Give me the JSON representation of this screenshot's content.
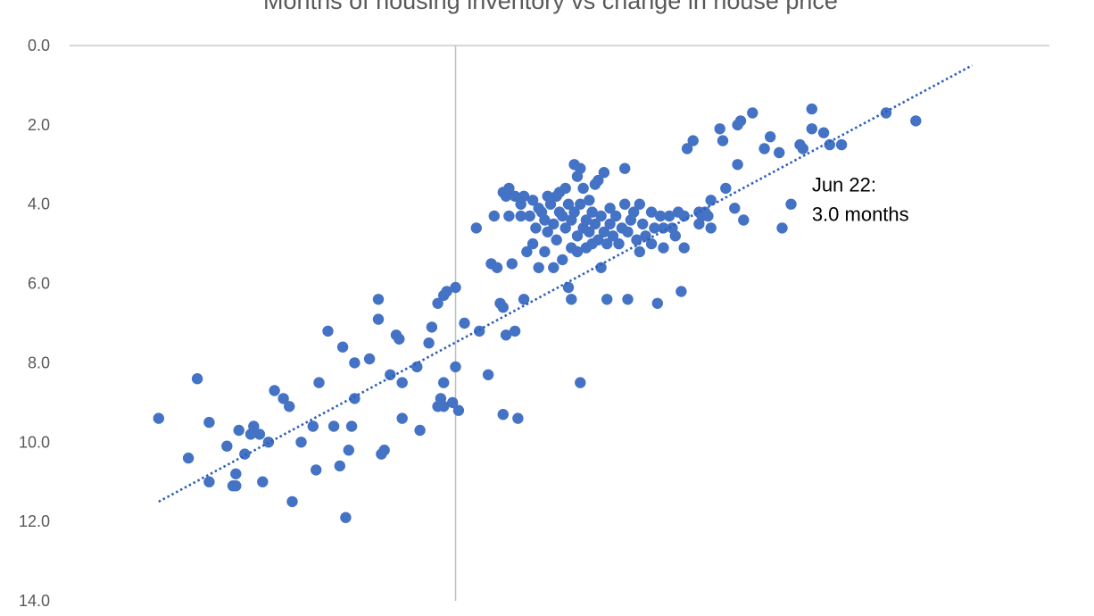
{
  "chart_data": {
    "type": "scatter",
    "title": "Months of housing inventory vs change in house price",
    "xlabel": "",
    "ylabel": "",
    "ylim": [
      0,
      14
    ],
    "y_reversed": true,
    "xlim": [
      -0.13,
      0.2
    ],
    "x_axis_crossing": 0,
    "y_ticks": [
      "0.0",
      "2.0",
      "4.0",
      "6.0",
      "8.0",
      "10.0",
      "12.0",
      "14.0"
    ],
    "gridlines": true,
    "trendline": {
      "style": "dotted",
      "x": [
        -0.1,
        0.174
      ],
      "y": [
        11.5,
        0.5
      ]
    },
    "annotation": {
      "line1": "Jun 22:",
      "line2": "3.0 months",
      "x": 0.12,
      "y": 4.0
    },
    "colors": {
      "marker": "#4472c4",
      "trend": "#2e5eb8",
      "axis": "#bfbfbf",
      "text": "#595959"
    },
    "series": [
      {
        "name": "",
        "points": [
          [
            -0.1,
            9.4
          ],
          [
            -0.083,
            9.5
          ],
          [
            -0.083,
            11.0
          ],
          [
            -0.09,
            10.4
          ],
          [
            -0.087,
            8.4
          ],
          [
            -0.077,
            10.1
          ],
          [
            -0.075,
            11.1
          ],
          [
            -0.074,
            10.8
          ],
          [
            -0.074,
            11.1
          ],
          [
            -0.073,
            9.7
          ],
          [
            -0.071,
            10.3
          ],
          [
            -0.069,
            9.8
          ],
          [
            -0.068,
            9.6
          ],
          [
            -0.066,
            9.8
          ],
          [
            -0.065,
            11.0
          ],
          [
            -0.063,
            10.0
          ],
          [
            -0.061,
            8.7
          ],
          [
            -0.058,
            8.9
          ],
          [
            -0.056,
            9.1
          ],
          [
            -0.055,
            11.5
          ],
          [
            -0.052,
            10.0
          ],
          [
            -0.048,
            9.6
          ],
          [
            -0.047,
            10.7
          ],
          [
            -0.046,
            8.5
          ],
          [
            -0.043,
            7.2
          ],
          [
            -0.041,
            9.6
          ],
          [
            -0.039,
            10.6
          ],
          [
            -0.038,
            7.6
          ],
          [
            -0.037,
            11.9
          ],
          [
            -0.036,
            10.2
          ],
          [
            -0.034,
            8.0
          ],
          [
            -0.035,
            9.6
          ],
          [
            -0.034,
            8.9
          ],
          [
            -0.029,
            7.9
          ],
          [
            -0.026,
            6.4
          ],
          [
            -0.026,
            6.9
          ],
          [
            -0.025,
            10.3
          ],
          [
            -0.024,
            10.2
          ],
          [
            -0.022,
            8.3
          ],
          [
            -0.02,
            7.3
          ],
          [
            -0.019,
            7.4
          ],
          [
            -0.018,
            8.5
          ],
          [
            -0.018,
            9.4
          ],
          [
            -0.012,
            9.7
          ],
          [
            -0.013,
            8.1
          ],
          [
            -0.009,
            7.5
          ],
          [
            -0.008,
            7.1
          ],
          [
            -0.006,
            9.1
          ],
          [
            -0.005,
            8.9
          ],
          [
            -0.004,
            8.5
          ],
          [
            -0.004,
            9.1
          ],
          [
            -0.001,
            9.0
          ],
          [
            -0.006,
            6.5
          ],
          [
            -0.004,
            6.3
          ],
          [
            -0.003,
            6.2
          ],
          [
            0.0,
            6.1
          ],
          [
            0.0,
            8.1
          ],
          [
            0.001,
            9.2
          ],
          [
            0.003,
            7.0
          ],
          [
            0.008,
            7.2
          ],
          [
            0.011,
            8.3
          ],
          [
            0.007,
            4.6
          ],
          [
            0.012,
            5.5
          ],
          [
            0.013,
            4.3
          ],
          [
            0.014,
            5.6
          ],
          [
            0.015,
            6.5
          ],
          [
            0.016,
            6.6
          ],
          [
            0.016,
            9.3
          ],
          [
            0.017,
            7.3
          ],
          [
            0.016,
            3.7
          ],
          [
            0.017,
            3.8
          ],
          [
            0.018,
            4.3
          ],
          [
            0.018,
            3.6
          ],
          [
            0.02,
            3.8
          ],
          [
            0.019,
            5.5
          ],
          [
            0.02,
            7.2
          ],
          [
            0.021,
            9.4
          ],
          [
            0.022,
            4.3
          ],
          [
            0.022,
            4.0
          ],
          [
            0.023,
            3.8
          ],
          [
            0.024,
            5.2
          ],
          [
            0.023,
            6.4
          ],
          [
            0.025,
            4.3
          ],
          [
            0.026,
            3.9
          ],
          [
            0.027,
            4.6
          ],
          [
            0.026,
            5.0
          ],
          [
            0.028,
            4.1
          ],
          [
            0.028,
            5.6
          ],
          [
            0.029,
            4.2
          ],
          [
            0.03,
            4.4
          ],
          [
            0.03,
            5.2
          ],
          [
            0.031,
            4.7
          ],
          [
            0.031,
            3.8
          ],
          [
            0.032,
            4.0
          ],
          [
            0.033,
            4.5
          ],
          [
            0.033,
            5.6
          ],
          [
            0.034,
            3.8
          ],
          [
            0.034,
            4.9
          ],
          [
            0.035,
            4.2
          ],
          [
            0.035,
            3.7
          ],
          [
            0.036,
            4.3
          ],
          [
            0.036,
            5.4
          ],
          [
            0.037,
            3.6
          ],
          [
            0.037,
            4.6
          ],
          [
            0.038,
            6.1
          ],
          [
            0.038,
            4.0
          ],
          [
            0.039,
            5.1
          ],
          [
            0.039,
            4.4
          ],
          [
            0.039,
            6.4
          ],
          [
            0.04,
            3.0
          ],
          [
            0.04,
            4.2
          ],
          [
            0.041,
            4.8
          ],
          [
            0.041,
            3.3
          ],
          [
            0.041,
            5.2
          ],
          [
            0.042,
            3.1
          ],
          [
            0.042,
            4.0
          ],
          [
            0.043,
            4.6
          ],
          [
            0.043,
            3.6
          ],
          [
            0.042,
            8.5
          ],
          [
            0.044,
            4.4
          ],
          [
            0.044,
            5.1
          ],
          [
            0.045,
            3.9
          ],
          [
            0.045,
            4.7
          ],
          [
            0.046,
            4.2
          ],
          [
            0.046,
            5.0
          ],
          [
            0.047,
            3.5
          ],
          [
            0.047,
            4.5
          ],
          [
            0.048,
            4.9
          ],
          [
            0.048,
            3.4
          ],
          [
            0.049,
            5.6
          ],
          [
            0.049,
            4.3
          ],
          [
            0.05,
            3.2
          ],
          [
            0.05,
            4.7
          ],
          [
            0.051,
            5.0
          ],
          [
            0.051,
            6.4
          ],
          [
            0.052,
            4.1
          ],
          [
            0.052,
            4.5
          ],
          [
            0.053,
            4.8
          ],
          [
            0.054,
            4.3
          ],
          [
            0.055,
            5.0
          ],
          [
            0.056,
            4.6
          ],
          [
            0.057,
            4.0
          ],
          [
            0.057,
            3.1
          ],
          [
            0.058,
            6.4
          ],
          [
            0.058,
            4.7
          ],
          [
            0.059,
            4.4
          ],
          [
            0.06,
            4.2
          ],
          [
            0.061,
            4.9
          ],
          [
            0.062,
            5.2
          ],
          [
            0.062,
            4.0
          ],
          [
            0.063,
            4.5
          ],
          [
            0.064,
            4.8
          ],
          [
            0.066,
            4.2
          ],
          [
            0.066,
            5.0
          ],
          [
            0.067,
            4.6
          ],
          [
            0.068,
            6.5
          ],
          [
            0.069,
            4.3
          ],
          [
            0.07,
            5.1
          ],
          [
            0.07,
            4.6
          ],
          [
            0.072,
            4.3
          ],
          [
            0.073,
            4.6
          ],
          [
            0.074,
            4.8
          ],
          [
            0.075,
            4.2
          ],
          [
            0.076,
            6.2
          ],
          [
            0.077,
            4.3
          ],
          [
            0.077,
            5.1
          ],
          [
            0.078,
            2.6
          ],
          [
            0.08,
            2.4
          ],
          [
            0.082,
            4.2
          ],
          [
            0.082,
            4.5
          ],
          [
            0.083,
            4.3
          ],
          [
            0.084,
            4.2
          ],
          [
            0.085,
            4.3
          ],
          [
            0.086,
            3.9
          ],
          [
            0.086,
            4.6
          ],
          [
            0.089,
            2.1
          ],
          [
            0.09,
            2.4
          ],
          [
            0.091,
            3.6
          ],
          [
            0.094,
            4.1
          ],
          [
            0.095,
            2.0
          ],
          [
            0.096,
            1.9
          ],
          [
            0.095,
            3.0
          ],
          [
            0.097,
            4.4
          ],
          [
            0.1,
            1.7
          ],
          [
            0.104,
            2.6
          ],
          [
            0.106,
            2.3
          ],
          [
            0.109,
            2.7
          ],
          [
            0.11,
            4.6
          ],
          [
            0.113,
            4.0
          ],
          [
            0.116,
            2.5
          ],
          [
            0.117,
            2.6
          ],
          [
            0.12,
            1.6
          ],
          [
            0.12,
            2.1
          ],
          [
            0.124,
            2.2
          ],
          [
            0.126,
            2.5
          ],
          [
            0.13,
            2.5
          ],
          [
            0.145,
            1.7
          ],
          [
            0.155,
            1.9
          ]
        ]
      }
    ]
  }
}
